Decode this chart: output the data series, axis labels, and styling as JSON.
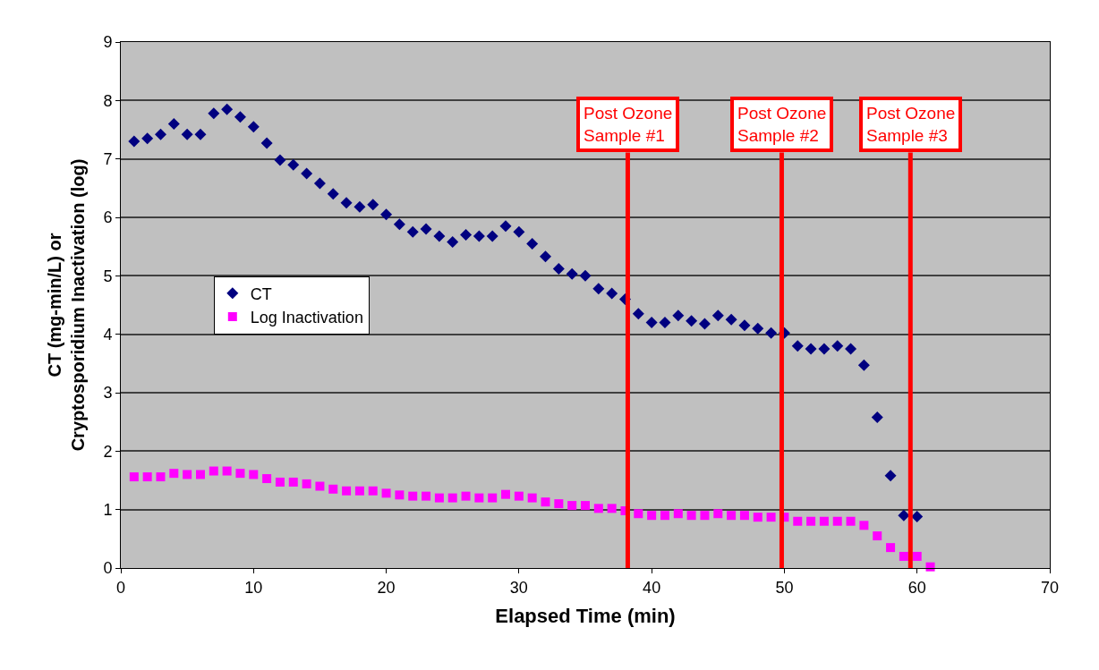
{
  "chart_data": {
    "type": "scatter",
    "xlabel": "Elapsed Time (min)",
    "ylabel": "CT (mg-min/L) or\nCryptosporidium Inactivation (log)",
    "xlim": [
      0,
      70
    ],
    "xticks": [
      0,
      10,
      20,
      30,
      40,
      50,
      60,
      70
    ],
    "ylim": [
      0,
      9
    ],
    "yticks": [
      0,
      1,
      2,
      3,
      4,
      5,
      6,
      7,
      8,
      9
    ],
    "grid": "y",
    "legend": "left",
    "series": [
      {
        "name": "CT",
        "color": "#000080",
        "marker": "diamond",
        "x": [
          1,
          2,
          3,
          4,
          5,
          6,
          7,
          8,
          9,
          10,
          11,
          12,
          13,
          14,
          15,
          16,
          17,
          18,
          19,
          20,
          21,
          22,
          23,
          24,
          25,
          26,
          27,
          28,
          29,
          30,
          31,
          32,
          33,
          34,
          35,
          36,
          37,
          38,
          39,
          40,
          41,
          42,
          43,
          44,
          45,
          46,
          47,
          48,
          49,
          50,
          51,
          52,
          53,
          54,
          55,
          56,
          57,
          58,
          59,
          60
        ],
        "values": [
          7.3,
          7.35,
          7.42,
          7.6,
          7.42,
          7.42,
          7.78,
          7.85,
          7.72,
          7.55,
          7.27,
          6.98,
          6.9,
          6.75,
          6.58,
          6.4,
          6.25,
          6.18,
          6.22,
          6.05,
          5.88,
          5.75,
          5.8,
          5.68,
          5.58,
          5.7,
          5.68,
          5.68,
          5.85,
          5.75,
          5.55,
          5.33,
          5.12,
          5.03,
          5.0,
          4.78,
          4.7,
          4.6,
          4.35,
          4.2,
          4.2,
          4.32,
          4.23,
          4.18,
          4.32,
          4.25,
          4.15,
          4.1,
          4.02,
          4.02,
          3.8,
          3.75,
          3.75,
          3.8,
          3.75,
          3.47,
          2.58,
          1.58,
          0.9,
          0.88
        ]
      },
      {
        "name": "Log Inactivation",
        "color": "#ff00ff",
        "marker": "square",
        "x": [
          1,
          2,
          3,
          4,
          5,
          6,
          7,
          8,
          9,
          10,
          11,
          12,
          13,
          14,
          15,
          16,
          17,
          18,
          19,
          20,
          21,
          22,
          23,
          24,
          25,
          26,
          27,
          28,
          29,
          30,
          31,
          32,
          33,
          34,
          35,
          36,
          37,
          38,
          39,
          40,
          41,
          42,
          43,
          44,
          45,
          46,
          47,
          48,
          49,
          50,
          51,
          52,
          53,
          54,
          55,
          56,
          57,
          58,
          59,
          60,
          61
        ],
        "values": [
          1.56,
          1.56,
          1.56,
          1.62,
          1.6,
          1.6,
          1.66,
          1.66,
          1.62,
          1.6,
          1.53,
          1.47,
          1.47,
          1.44,
          1.4,
          1.35,
          1.32,
          1.32,
          1.32,
          1.28,
          1.25,
          1.23,
          1.23,
          1.2,
          1.2,
          1.23,
          1.2,
          1.2,
          1.26,
          1.23,
          1.2,
          1.13,
          1.1,
          1.07,
          1.07,
          1.02,
          1.02,
          0.98,
          0.93,
          0.9,
          0.9,
          0.93,
          0.9,
          0.9,
          0.93,
          0.9,
          0.9,
          0.87,
          0.87,
          0.87,
          0.8,
          0.8,
          0.8,
          0.8,
          0.8,
          0.73,
          0.55,
          0.35,
          0.2,
          0.2,
          0.02
        ]
      }
    ],
    "ref_lines": [
      {
        "axis": "x",
        "value": 38.2,
        "label": "Post Ozone\nSample #1",
        "color": "#ff0000"
      },
      {
        "axis": "x",
        "value": 49.8,
        "label": "Post Ozone\nSample #2",
        "color": "#ff0000"
      },
      {
        "axis": "x",
        "value": 59.5,
        "label": "Post Ozone\nSample #3",
        "color": "#ff0000"
      }
    ]
  }
}
